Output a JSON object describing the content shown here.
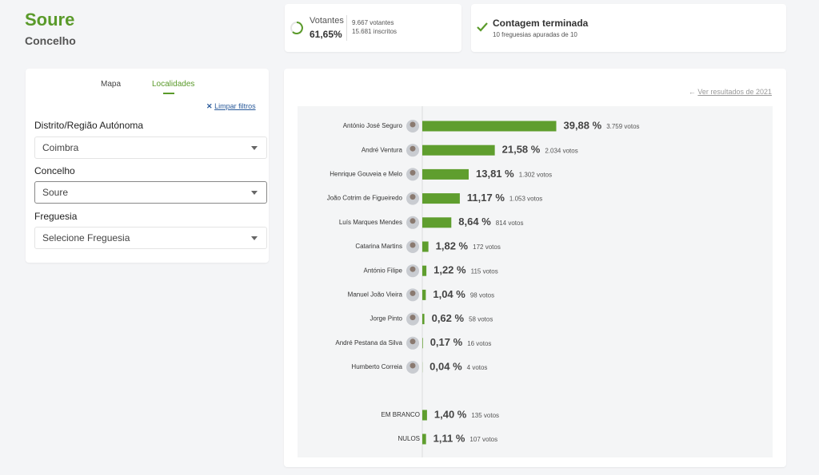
{
  "header": {
    "title": "Soure",
    "subtitle": "Concelho"
  },
  "turnout": {
    "label": "Votantes",
    "value": "61,65%",
    "voters": "9.667 votantes",
    "registered": "15.681 inscritos"
  },
  "count": {
    "title": "Contagem terminada",
    "detail": "10 freguesias apuradas de 10"
  },
  "filters": {
    "tabs": [
      "Mapa",
      "Localidades"
    ],
    "clear": "Limpar filtros",
    "fields": [
      {
        "label": "Distrito/Região Autónoma",
        "value": "Coimbra"
      },
      {
        "label": "Concelho",
        "value": "Soure"
      },
      {
        "label": "Freguesia",
        "value": "Selecione Freguesia"
      }
    ]
  },
  "results": {
    "link": "Ver resultados de 2021",
    "candidates": [
      {
        "name": "António José Seguro",
        "pct": 39.88,
        "pct_label": "39,88 %",
        "votes": "3.759 votos"
      },
      {
        "name": "André Ventura",
        "pct": 21.58,
        "pct_label": "21,58 %",
        "votes": "2.034 votos"
      },
      {
        "name": "Henrique Gouveia e Melo",
        "pct": 13.81,
        "pct_label": "13,81 %",
        "votes": "1.302 votos"
      },
      {
        "name": "João Cotrim de Figueiredo",
        "pct": 11.17,
        "pct_label": "11,17 %",
        "votes": "1.053 votos"
      },
      {
        "name": "Luís Marques Mendes",
        "pct": 8.64,
        "pct_label": "8,64 %",
        "votes": "814 votos"
      },
      {
        "name": "Catarina Martins",
        "pct": 1.82,
        "pct_label": "1,82 %",
        "votes": "172 votos"
      },
      {
        "name": "António Filipe",
        "pct": 1.22,
        "pct_label": "1,22 %",
        "votes": "115 votos"
      },
      {
        "name": "Manuel João Vieira",
        "pct": 1.04,
        "pct_label": "1,04 %",
        "votes": "98 votos"
      },
      {
        "name": "Jorge Pinto",
        "pct": 0.62,
        "pct_label": "0,62 %",
        "votes": "58 votos"
      },
      {
        "name": "André Pestana da Silva",
        "pct": 0.17,
        "pct_label": "0,17 %",
        "votes": "16 votos"
      },
      {
        "name": "Humberto Correia",
        "pct": 0.04,
        "pct_label": "0,04 %",
        "votes": "4 votos"
      }
    ],
    "others": [
      {
        "name": "EM BRANCO",
        "pct": 1.4,
        "pct_label": "1,40 %",
        "votes": "135 votos"
      },
      {
        "name": "NULOS",
        "pct": 1.11,
        "pct_label": "1,11 %",
        "votes": "107 votos"
      }
    ]
  }
}
